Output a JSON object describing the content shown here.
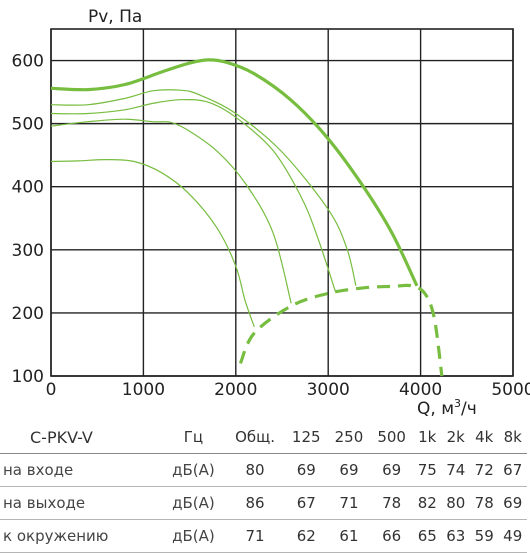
{
  "chart_data": {
    "type": "line",
    "ylabel": "Pv, Па",
    "xlabel_prefix": "Q, м",
    "xlabel_sup": "3",
    "xlabel_suffix": "/ч",
    "xlim": [
      0,
      5000
    ],
    "ylim": [
      100,
      650
    ],
    "xticks": [
      0,
      1000,
      2000,
      3000,
      4000,
      5000
    ],
    "yticks": [
      100,
      200,
      300,
      400,
      500,
      600
    ],
    "grid": true,
    "colors": {
      "curve": "#77bd3f",
      "grid": "#222222"
    },
    "series": [
      {
        "style": "thick-solid",
        "x": [
          0,
          400,
          800,
          1200,
          1500,
          1700,
          1900,
          2200,
          2600,
          3000,
          3400,
          3700,
          3960
        ],
        "y": [
          556,
          554,
          562,
          582,
          596,
          601,
          597,
          579,
          537,
          476,
          396,
          324,
          243
        ]
      },
      {
        "style": "thin-solid",
        "x": [
          0,
          400,
          800,
          1100,
          1400,
          1600,
          2000,
          2500,
          3000,
          3200,
          3300
        ],
        "y": [
          530,
          530,
          540,
          552,
          553,
          546,
          516,
          455,
          364,
          303,
          243
        ]
      },
      {
        "style": "thin-solid",
        "x": [
          0,
          400,
          800,
          1100,
          1400,
          1700,
          2000,
          2400,
          2700,
          2880,
          3080
        ],
        "y": [
          516,
          516,
          522,
          532,
          538,
          534,
          510,
          458,
          386,
          322,
          233
        ]
      },
      {
        "style": "thin-solid",
        "x": [
          0,
          400,
          800,
          1100,
          1300,
          1500,
          1800,
          2100,
          2400,
          2600
        ],
        "y": [
          496,
          503,
          507,
          503,
          502,
          488,
          456,
          406,
          328,
          215
        ]
      },
      {
        "style": "thin-solid",
        "x": [
          0,
          300,
          600,
          900,
          1200,
          1500,
          1800,
          2000,
          2100,
          2200
        ],
        "y": [
          440,
          441,
          443,
          440,
          422,
          388,
          334,
          274,
          220,
          178
        ]
      },
      {
        "style": "dashed",
        "x": [
          2050,
          2200,
          2600,
          3000,
          3400,
          3700,
          3900,
          4050,
          4150,
          4230
        ],
        "y": [
          120,
          168,
          211,
          231,
          240,
          242,
          243,
          230,
          190,
          100
        ]
      }
    ]
  },
  "table": {
    "model": "C-PKV-V",
    "unit_header": "Гц",
    "columns": [
      "Общ.",
      "125",
      "250",
      "500",
      "1k",
      "2k",
      "4k",
      "8k"
    ],
    "rows": [
      {
        "label": "на входе",
        "unit": "дБ(А)",
        "values": [
          "80",
          "69",
          "69",
          "69",
          "75",
          "74",
          "72",
          "67"
        ]
      },
      {
        "label": "на выходе",
        "unit": "дБ(А)",
        "values": [
          "86",
          "67",
          "71",
          "78",
          "82",
          "80",
          "78",
          "69"
        ]
      },
      {
        "label": "к окружению",
        "unit": "дБ(А)",
        "values": [
          "71",
          "62",
          "61",
          "66",
          "65",
          "63",
          "59",
          "49"
        ]
      }
    ]
  }
}
